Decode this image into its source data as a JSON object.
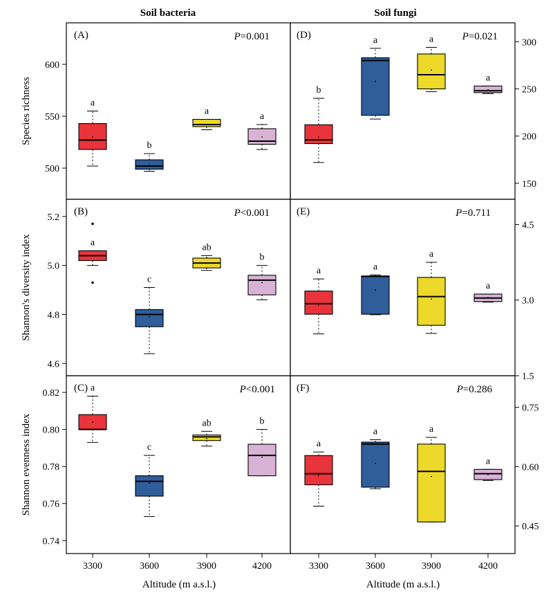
{
  "figure": {
    "col_titles": [
      "Soil bacteria",
      "Soil fungi"
    ],
    "x_axis_title": "Altitude (m a.s.l.)",
    "box_colors": [
      "#e8343a",
      "#2f5e9a",
      "#ecd92a",
      "#d9b3d6"
    ]
  },
  "chart_data": [
    {
      "id": "A",
      "type": "box",
      "title": "(A)",
      "p_label": "P",
      "p_value": "=0.001",
      "ylabel": "Species richness",
      "ylim": [
        470,
        640
      ],
      "yticks": [
        500,
        550,
        600
      ],
      "categories": [
        "3300",
        "3600",
        "3900",
        "4200"
      ],
      "boxes": [
        {
          "whisker_low": 502,
          "q1": 518,
          "median": 527,
          "q3": 543,
          "whisker_high": 555,
          "mean": 530,
          "outliers": [],
          "letter": "a"
        },
        {
          "whisker_low": 497,
          "q1": 499,
          "median": 502,
          "q3": 508,
          "whisker_high": 514,
          "mean": 503,
          "outliers": [],
          "letter": "b"
        },
        {
          "whisker_low": 537,
          "q1": 540,
          "median": 542,
          "q3": 547,
          "whisker_high": 547,
          "mean": 542,
          "outliers": [],
          "letter": "a"
        },
        {
          "whisker_low": 518,
          "q1": 523,
          "median": 526,
          "q3": 538,
          "whisker_high": 542,
          "mean": 530,
          "outliers": [],
          "letter": "a"
        }
      ]
    },
    {
      "id": "D",
      "type": "box",
      "title": "(D)",
      "p_label": "P",
      "p_value": "=0.021",
      "ylabel": "",
      "ylim": [
        133,
        320
      ],
      "yticks": [
        150,
        200,
        250,
        300
      ],
      "categories": [
        "3300",
        "3600",
        "3900",
        "4200"
      ],
      "boxes": [
        {
          "whisker_low": 172,
          "q1": 192,
          "median": 196,
          "q3": 212,
          "whisker_high": 240,
          "mean": 199,
          "outliers": [],
          "letter": "b"
        },
        {
          "whisker_low": 218,
          "q1": 222,
          "median": 280,
          "q3": 283,
          "whisker_high": 293,
          "mean": 258,
          "outliers": [],
          "letter": "a"
        },
        {
          "whisker_low": 247,
          "q1": 250,
          "median": 265,
          "q3": 287,
          "whisker_high": 294,
          "mean": 270,
          "outliers": [],
          "letter": "a"
        },
        {
          "whisker_low": 245,
          "q1": 246,
          "median": 248,
          "q3": 253,
          "whisker_high": 253,
          "mean": 249,
          "outliers": [],
          "letter": "a"
        }
      ]
    },
    {
      "id": "B",
      "type": "box",
      "title": "(B)",
      "p_label": "P",
      "p_value": "<0.001",
      "ylabel": "Shannon's diversity index",
      "ylim": [
        4.55,
        5.27
      ],
      "yticks": [
        4.6,
        4.8,
        5.0,
        5.2
      ],
      "categories": [
        "3300",
        "3600",
        "3900",
        "4200"
      ],
      "boxes": [
        {
          "whisker_low": 5.0,
          "q1": 5.02,
          "median": 5.04,
          "q3": 5.06,
          "whisker_high": 5.06,
          "mean": 5.04,
          "outliers": [
            5.17,
            4.93
          ],
          "letter": "a"
        },
        {
          "whisker_low": 4.64,
          "q1": 4.75,
          "median": 4.8,
          "q3": 4.82,
          "whisker_high": 4.91,
          "mean": 4.79,
          "outliers": [],
          "letter": "c"
        },
        {
          "whisker_low": 4.98,
          "q1": 4.99,
          "median": 5.01,
          "q3": 5.03,
          "whisker_high": 5.04,
          "mean": 5.01,
          "outliers": [],
          "letter": "ab"
        },
        {
          "whisker_low": 4.86,
          "q1": 4.88,
          "median": 4.94,
          "q3": 4.96,
          "whisker_high": 5.0,
          "mean": 4.93,
          "outliers": [],
          "letter": "b"
        }
      ]
    },
    {
      "id": "E",
      "type": "box",
      "title": "(E)",
      "p_label": "P",
      "p_value": "=0.711",
      "ylabel": "",
      "ylim": [
        1.5,
        5.0
      ],
      "yticks": [
        1.5,
        3.0,
        4.5
      ],
      "categories": [
        "3300",
        "3600",
        "3900",
        "4200"
      ],
      "boxes": [
        {
          "whisker_low": 2.33,
          "q1": 2.72,
          "median": 2.93,
          "q3": 3.18,
          "whisker_high": 3.42,
          "mean": 2.9,
          "outliers": [],
          "letter": "a"
        },
        {
          "whisker_low": 2.71,
          "q1": 2.72,
          "median": 3.47,
          "q3": 3.48,
          "whisker_high": 3.5,
          "mean": 3.2,
          "outliers": [],
          "letter": "a"
        },
        {
          "whisker_low": 2.34,
          "q1": 2.5,
          "median": 3.07,
          "q3": 3.45,
          "whisker_high": 3.75,
          "mean": 3.02,
          "outliers": [],
          "letter": "a"
        },
        {
          "whisker_low": 2.96,
          "q1": 2.97,
          "median": 3.04,
          "q3": 3.12,
          "whisker_high": 3.12,
          "mean": 3.05,
          "outliers": [],
          "letter": "a"
        }
      ]
    },
    {
      "id": "C",
      "type": "box",
      "title": "(C)",
      "p_label": "P",
      "p_value": "<0.001",
      "ylabel": "Shannon evenness index",
      "ylim": [
        0.733,
        0.829
      ],
      "yticks": [
        0.74,
        0.76,
        0.78,
        0.8,
        0.82
      ],
      "categories": [
        "3300",
        "3600",
        "3900",
        "4200"
      ],
      "boxes": [
        {
          "whisker_low": 0.793,
          "q1": 0.8,
          "median": 0.8,
          "q3": 0.808,
          "whisker_high": 0.818,
          "mean": 0.804,
          "outliers": [],
          "letter": "a"
        },
        {
          "whisker_low": 0.753,
          "q1": 0.764,
          "median": 0.772,
          "q3": 0.775,
          "whisker_high": 0.786,
          "mean": 0.771,
          "outliers": [],
          "letter": "c"
        },
        {
          "whisker_low": 0.791,
          "q1": 0.794,
          "median": 0.796,
          "q3": 0.797,
          "whisker_high": 0.799,
          "mean": 0.795,
          "outliers": [],
          "letter": "ab"
        },
        {
          "whisker_low": 0.775,
          "q1": 0.775,
          "median": 0.786,
          "q3": 0.792,
          "whisker_high": 0.8,
          "mean": 0.785,
          "outliers": [],
          "letter": "b"
        }
      ]
    },
    {
      "id": "F",
      "type": "box",
      "title": "(F)",
      "p_label": "P",
      "p_value": "=0.286",
      "ylabel": "",
      "ylim": [
        0.38,
        0.83
      ],
      "yticks": [
        0.45,
        0.6,
        0.75
      ],
      "categories": [
        "3300",
        "3600",
        "3900",
        "4200"
      ],
      "boxes": [
        {
          "whisker_low": 0.5,
          "q1": 0.554,
          "median": 0.582,
          "q3": 0.628,
          "whisker_high": 0.637,
          "mean": 0.578,
          "outliers": [],
          "letter": "a"
        },
        {
          "whisker_low": 0.544,
          "q1": 0.548,
          "median": 0.657,
          "q3": 0.662,
          "whisker_high": 0.668,
          "mean": 0.608,
          "outliers": [],
          "letter": "a"
        },
        {
          "whisker_low": 0.46,
          "q1": 0.46,
          "median": 0.588,
          "q3": 0.657,
          "whisker_high": 0.674,
          "mean": 0.575,
          "outliers": [],
          "letter": "a"
        },
        {
          "whisker_low": 0.565,
          "q1": 0.567,
          "median": 0.582,
          "q3": 0.593,
          "whisker_high": 0.593,
          "mean": 0.58,
          "outliers": [],
          "letter": "a"
        }
      ]
    }
  ]
}
